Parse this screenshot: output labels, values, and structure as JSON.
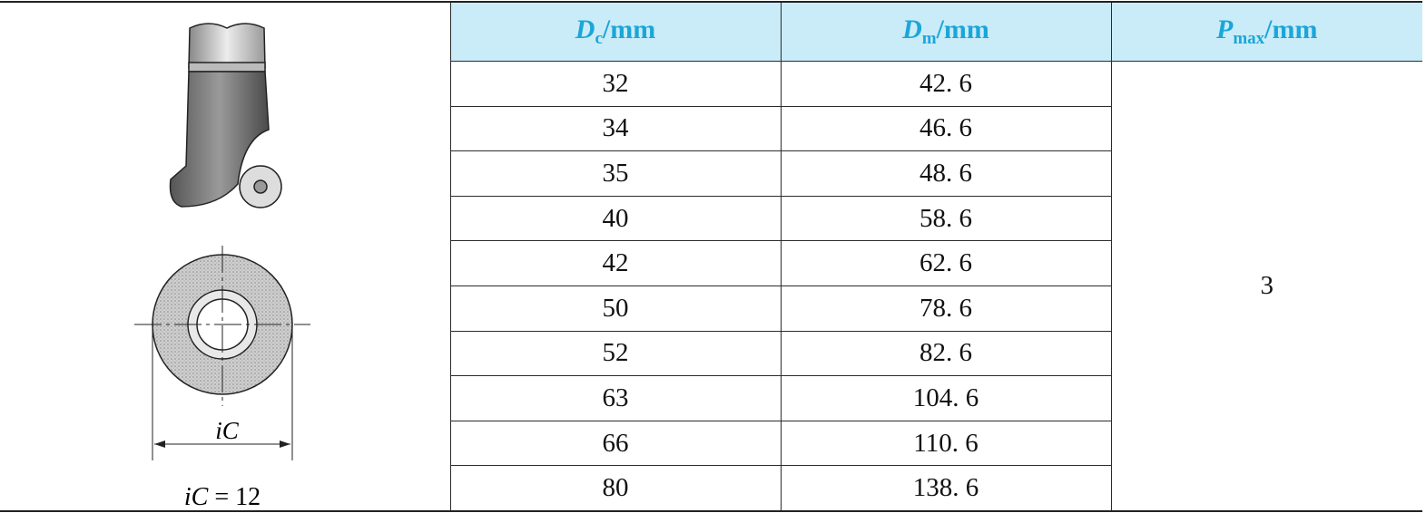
{
  "figure": {
    "dimension_label": "iC",
    "caption": {
      "symbol": "iC",
      "value": "= 12"
    }
  },
  "table": {
    "headers": [
      {
        "symbol": "D",
        "subscript": "c",
        "unit": "/mm"
      },
      {
        "symbol": "D",
        "subscript": "m",
        "unit": "/mm"
      },
      {
        "symbol": "P",
        "subscript": "max",
        "unit": "/mm"
      }
    ],
    "rows": [
      [
        "32",
        "42. 6"
      ],
      [
        "34",
        "46. 6"
      ],
      [
        "35",
        "48. 6"
      ],
      [
        "40",
        "58. 6"
      ],
      [
        "42",
        "62. 6"
      ],
      [
        "50",
        "78. 6"
      ],
      [
        "52",
        "82. 6"
      ],
      [
        "63",
        "104. 6"
      ],
      [
        "66",
        "110. 6"
      ],
      [
        "80",
        "138. 6"
      ]
    ],
    "pmax": "3"
  }
}
